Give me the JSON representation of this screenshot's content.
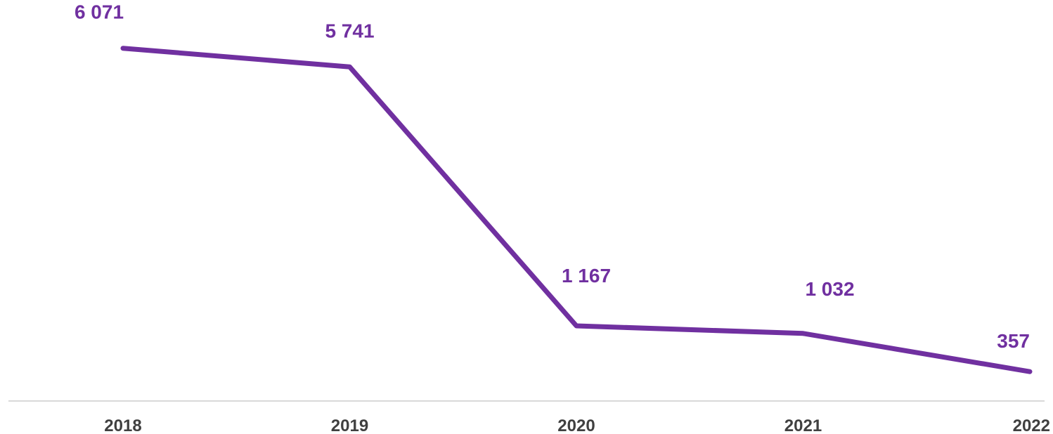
{
  "chart_data": {
    "type": "line",
    "title": "",
    "xlabel": "",
    "ylabel": "",
    "categories": [
      "2018",
      "2019",
      "2020",
      "2021",
      "2022"
    ],
    "series": [
      {
        "values": [
          6071,
          5741,
          1167,
          1032,
          357
        ],
        "labels": [
          "6 071",
          "5 741",
          "1 167",
          "1 032",
          "357"
        ]
      }
    ],
    "ylim": [
      0,
      6800
    ],
    "grid": false,
    "legend": "none",
    "colors": {
      "line": "#7030a0",
      "label": "#7030a0",
      "tick": "#404040",
      "axis": "#d9d9d9"
    }
  }
}
